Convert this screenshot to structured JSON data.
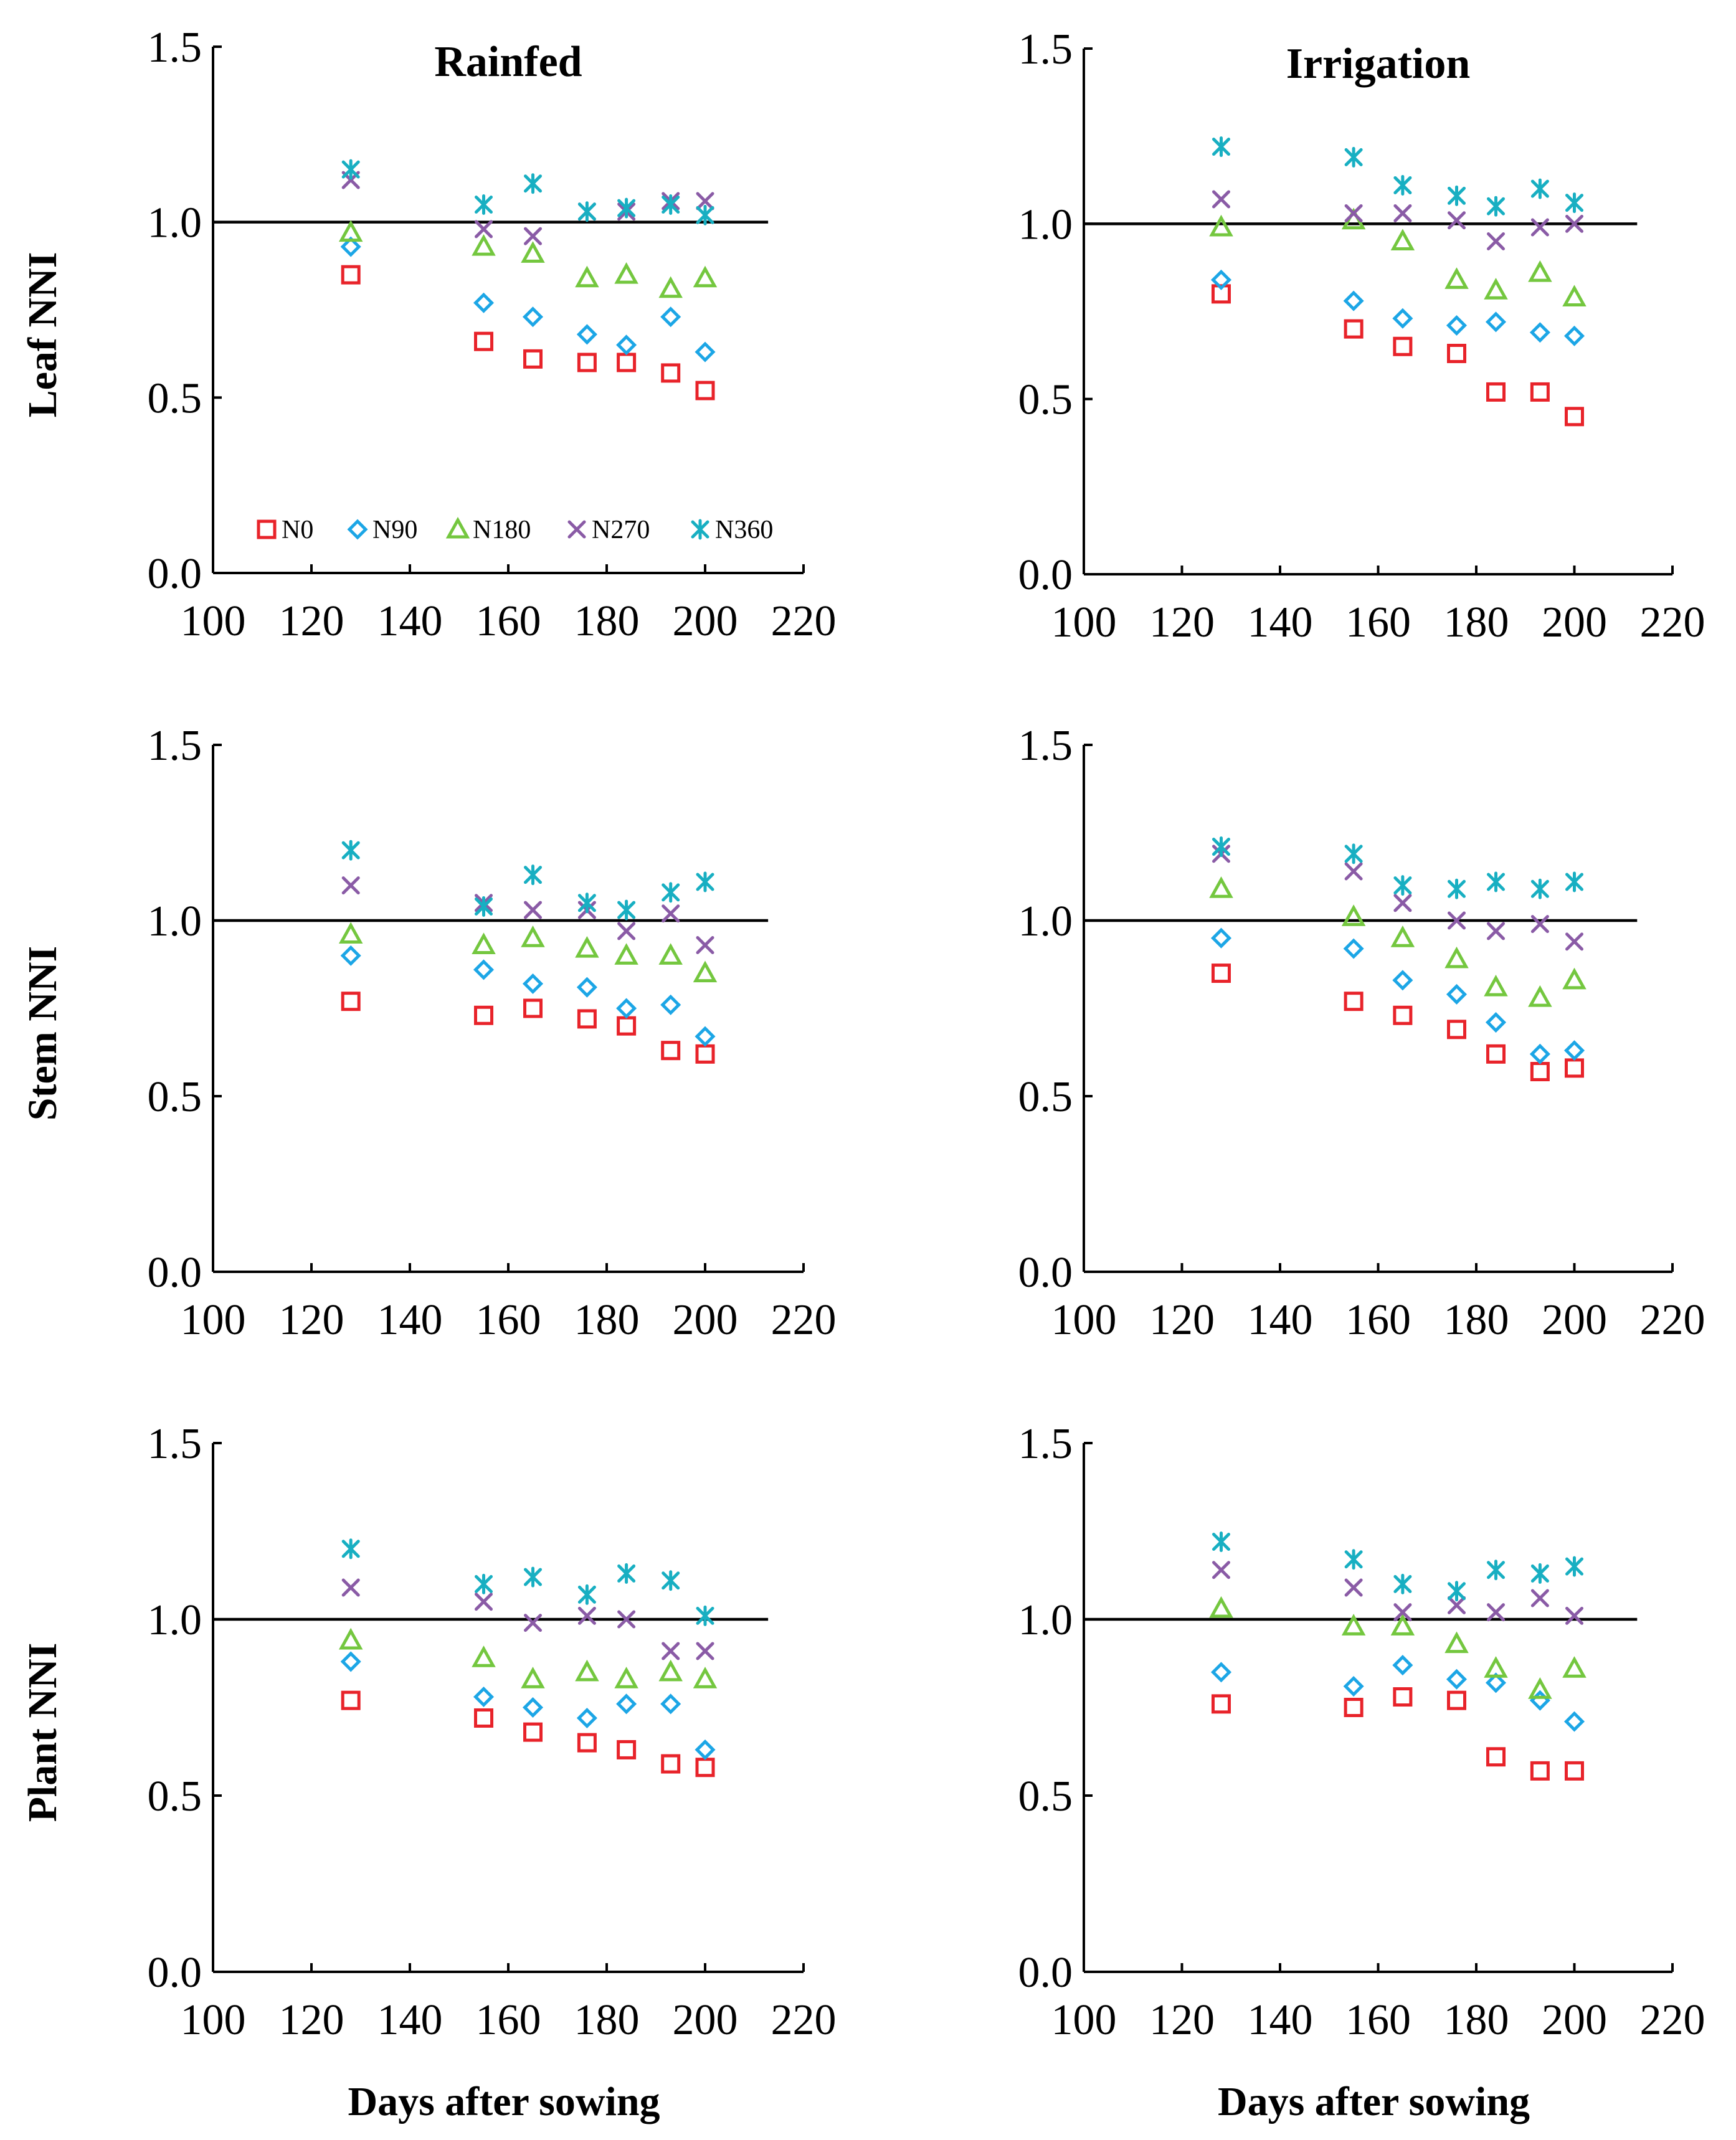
{
  "figure": {
    "x_axis_label": "Days after sowing",
    "series_colors": {
      "N0": "#E8232A",
      "N90": "#1CA6E6",
      "N180": "#74C73F",
      "N270": "#8A5BA6",
      "N360": "#18AFC2"
    }
  },
  "chart_data": [
    {
      "id": "rainfed-leaf",
      "type": "scatter",
      "title": "Rainfed",
      "ylabel": "Leaf NNI",
      "xlabel": "",
      "xlim": [
        100,
        220
      ],
      "ylim": [
        0,
        1.5
      ],
      "xticks": [
        "100",
        "120",
        "140",
        "160",
        "180",
        "200",
        "220"
      ],
      "yticks": [
        "0.0",
        "0.5",
        "1.0",
        "1.5"
      ],
      "reference_line": 1.0,
      "legend": true,
      "x": [
        128,
        155,
        165,
        176,
        184,
        193,
        200
      ],
      "series": [
        {
          "name": "N0",
          "marker": "square",
          "values": [
            0.85,
            0.66,
            0.61,
            0.6,
            0.6,
            0.57,
            0.52
          ]
        },
        {
          "name": "N90",
          "marker": "diamond",
          "values": [
            0.93,
            0.77,
            0.73,
            0.68,
            0.65,
            0.73,
            0.63
          ]
        },
        {
          "name": "N180",
          "marker": "triangle",
          "values": [
            0.97,
            0.93,
            0.91,
            0.84,
            0.85,
            0.81,
            0.84
          ]
        },
        {
          "name": "N270",
          "marker": "x",
          "values": [
            1.12,
            0.98,
            0.96,
            1.03,
            1.03,
            1.06,
            1.06
          ]
        },
        {
          "name": "N360",
          "marker": "star",
          "values": [
            1.15,
            1.05,
            1.11,
            1.03,
            1.04,
            1.05,
            1.02
          ]
        }
      ]
    },
    {
      "id": "irrigation-leaf",
      "type": "scatter",
      "title": "Irrigation",
      "ylabel": "",
      "xlabel": "",
      "xlim": [
        100,
        220
      ],
      "ylim": [
        0,
        1.5
      ],
      "xticks": [
        "100",
        "120",
        "140",
        "160",
        "180",
        "200",
        "220"
      ],
      "yticks": [
        "0.0",
        "0.5",
        "1.0",
        "1.5"
      ],
      "reference_line": 1.0,
      "legend": false,
      "x": [
        128,
        155,
        165,
        176,
        184,
        193,
        200
      ],
      "series": [
        {
          "name": "N0",
          "marker": "square",
          "values": [
            0.8,
            0.7,
            0.65,
            0.63,
            0.52,
            0.52,
            0.45
          ]
        },
        {
          "name": "N90",
          "marker": "diamond",
          "values": [
            0.84,
            0.78,
            0.73,
            0.71,
            0.72,
            0.69,
            0.68
          ]
        },
        {
          "name": "N180",
          "marker": "triangle",
          "values": [
            0.99,
            1.01,
            0.95,
            0.84,
            0.81,
            0.86,
            0.79
          ]
        },
        {
          "name": "N270",
          "marker": "x",
          "values": [
            1.07,
            1.03,
            1.03,
            1.01,
            0.95,
            0.99,
            1.0
          ]
        },
        {
          "name": "N360",
          "marker": "star",
          "values": [
            1.22,
            1.19,
            1.11,
            1.08,
            1.05,
            1.1,
            1.06
          ]
        }
      ]
    },
    {
      "id": "rainfed-stem",
      "type": "scatter",
      "title": "",
      "ylabel": "Stem NNI",
      "xlabel": "",
      "xlim": [
        100,
        220
      ],
      "ylim": [
        0,
        1.5
      ],
      "xticks": [
        "100",
        "120",
        "140",
        "160",
        "180",
        "200",
        "220"
      ],
      "yticks": [
        "0.0",
        "0.5",
        "1.0",
        "1.5"
      ],
      "reference_line": 1.0,
      "legend": false,
      "x": [
        128,
        155,
        165,
        176,
        184,
        193,
        200
      ],
      "series": [
        {
          "name": "N0",
          "marker": "square",
          "values": [
            0.77,
            0.73,
            0.75,
            0.72,
            0.7,
            0.63,
            0.62
          ]
        },
        {
          "name": "N90",
          "marker": "diamond",
          "values": [
            0.9,
            0.86,
            0.82,
            0.81,
            0.75,
            0.76,
            0.67
          ]
        },
        {
          "name": "N180",
          "marker": "triangle",
          "values": [
            0.96,
            0.93,
            0.95,
            0.92,
            0.9,
            0.9,
            0.85
          ]
        },
        {
          "name": "N270",
          "marker": "x",
          "values": [
            1.1,
            1.05,
            1.03,
            1.03,
            0.97,
            1.02,
            0.93
          ]
        },
        {
          "name": "N360",
          "marker": "star",
          "values": [
            1.2,
            1.04,
            1.13,
            1.05,
            1.03,
            1.08,
            1.11
          ]
        }
      ]
    },
    {
      "id": "irrigation-stem",
      "type": "scatter",
      "title": "",
      "ylabel": "",
      "xlabel": "",
      "xlim": [
        100,
        220
      ],
      "ylim": [
        0,
        1.5
      ],
      "xticks": [
        "100",
        "120",
        "140",
        "160",
        "180",
        "200",
        "220"
      ],
      "yticks": [
        "0.0",
        "0.5",
        "1.0",
        "1.5"
      ],
      "reference_line": 1.0,
      "legend": false,
      "x": [
        128,
        155,
        165,
        176,
        184,
        193,
        200
      ],
      "series": [
        {
          "name": "N0",
          "marker": "square",
          "values": [
            0.85,
            0.77,
            0.73,
            0.69,
            0.62,
            0.57,
            0.58
          ]
        },
        {
          "name": "N90",
          "marker": "diamond",
          "values": [
            0.95,
            0.92,
            0.83,
            0.79,
            0.71,
            0.62,
            0.63
          ]
        },
        {
          "name": "N180",
          "marker": "triangle",
          "values": [
            1.09,
            1.01,
            0.95,
            0.89,
            0.81,
            0.78,
            0.83
          ]
        },
        {
          "name": "N270",
          "marker": "x",
          "values": [
            1.19,
            1.14,
            1.05,
            1.0,
            0.97,
            0.99,
            0.94
          ]
        },
        {
          "name": "N360",
          "marker": "star",
          "values": [
            1.21,
            1.19,
            1.1,
            1.09,
            1.11,
            1.09,
            1.11
          ]
        }
      ]
    },
    {
      "id": "rainfed-plant",
      "type": "scatter",
      "title": "",
      "ylabel": "Plant NNI",
      "xlabel": "Days after sowing",
      "xlim": [
        100,
        220
      ],
      "ylim": [
        0,
        1.5
      ],
      "xticks": [
        "100",
        "120",
        "140",
        "160",
        "180",
        "200",
        "220"
      ],
      "yticks": [
        "0.0",
        "0.5",
        "1.0",
        "1.5"
      ],
      "reference_line": 1.0,
      "legend": false,
      "x": [
        128,
        155,
        165,
        176,
        184,
        193,
        200
      ],
      "series": [
        {
          "name": "N0",
          "marker": "square",
          "values": [
            0.77,
            0.72,
            0.68,
            0.65,
            0.63,
            0.59,
            0.58
          ]
        },
        {
          "name": "N90",
          "marker": "diamond",
          "values": [
            0.88,
            0.78,
            0.75,
            0.72,
            0.76,
            0.76,
            0.63
          ]
        },
        {
          "name": "N180",
          "marker": "triangle",
          "values": [
            0.94,
            0.89,
            0.83,
            0.85,
            0.83,
            0.85,
            0.83
          ]
        },
        {
          "name": "N270",
          "marker": "x",
          "values": [
            1.09,
            1.05,
            0.99,
            1.01,
            1.0,
            0.91,
            0.91
          ]
        },
        {
          "name": "N360",
          "marker": "star",
          "values": [
            1.2,
            1.1,
            1.12,
            1.07,
            1.13,
            1.11,
            1.01
          ]
        }
      ]
    },
    {
      "id": "irrigation-plant",
      "type": "scatter",
      "title": "",
      "ylabel": "",
      "xlabel": "Days after sowing",
      "xlim": [
        100,
        220
      ],
      "ylim": [
        0,
        1.5
      ],
      "xticks": [
        "100",
        "120",
        "140",
        "160",
        "180",
        "200",
        "220"
      ],
      "yticks": [
        "0.0",
        "0.5",
        "1.0",
        "1.5"
      ],
      "reference_line": 1.0,
      "legend": false,
      "x": [
        128,
        155,
        165,
        176,
        184,
        193,
        200
      ],
      "series": [
        {
          "name": "N0",
          "marker": "square",
          "values": [
            0.76,
            0.75,
            0.78,
            0.77,
            0.61,
            0.57,
            0.57
          ]
        },
        {
          "name": "N90",
          "marker": "diamond",
          "values": [
            0.85,
            0.81,
            0.87,
            0.83,
            0.82,
            0.77,
            0.71
          ]
        },
        {
          "name": "N180",
          "marker": "triangle",
          "values": [
            1.03,
            0.98,
            0.98,
            0.93,
            0.86,
            0.8,
            0.86
          ]
        },
        {
          "name": "N270",
          "marker": "x",
          "values": [
            1.14,
            1.09,
            1.02,
            1.04,
            1.02,
            1.06,
            1.01
          ]
        },
        {
          "name": "N360",
          "marker": "star",
          "values": [
            1.22,
            1.17,
            1.1,
            1.08,
            1.14,
            1.13,
            1.15
          ]
        }
      ]
    }
  ]
}
